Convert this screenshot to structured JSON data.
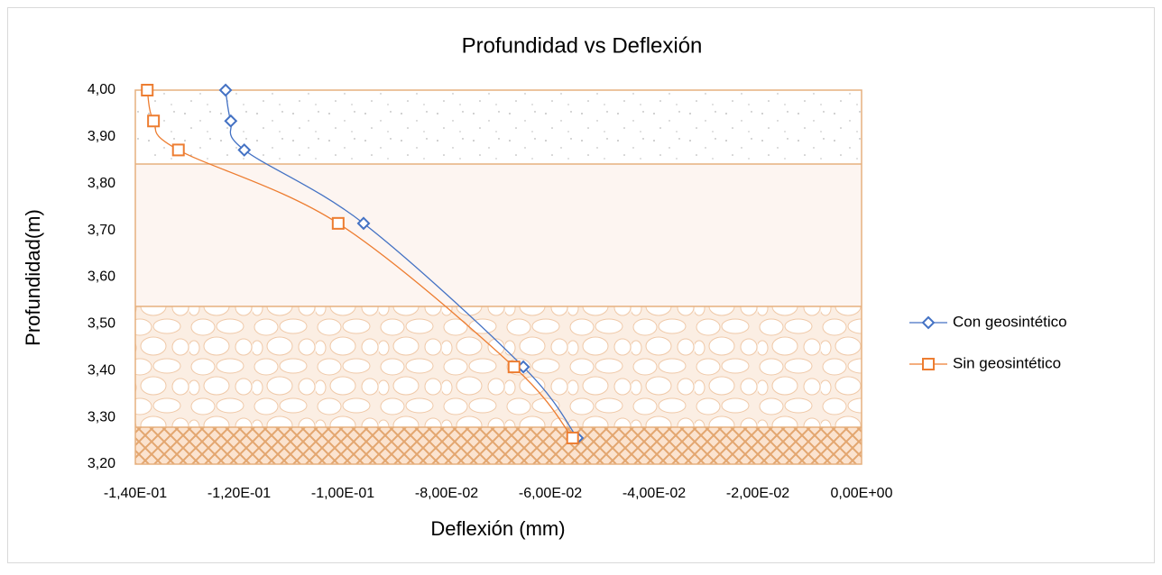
{
  "chart_data": {
    "type": "scatter",
    "title": "Profundidad vs Deflexión",
    "x_label": "Deflexión  (mm)",
    "y_label": "Profundidad(m)",
    "xlim": [
      -0.14,
      0
    ],
    "ylim": [
      3.2,
      4.0
    ],
    "xticks": [
      {
        "value": -0.14,
        "label": "-1,40E-01"
      },
      {
        "value": -0.12,
        "label": "-1,20E-01"
      },
      {
        "value": -0.1,
        "label": "-1,00E-01"
      },
      {
        "value": -0.08,
        "label": "-8,00E-02"
      },
      {
        "value": -0.06,
        "label": "-6,00E-02"
      },
      {
        "value": -0.04,
        "label": "-4,00E-02"
      },
      {
        "value": -0.02,
        "label": "-2,00E-02"
      },
      {
        "value": 0,
        "label": "0,00E+00"
      }
    ],
    "yticks": [
      {
        "value": 3.2,
        "label": "3,20"
      },
      {
        "value": 3.3,
        "label": "3,30"
      },
      {
        "value": 3.4,
        "label": "3,40"
      },
      {
        "value": 3.5,
        "label": "3,50"
      },
      {
        "value": 3.6,
        "label": "3,60"
      },
      {
        "value": 3.7,
        "label": "3,70"
      },
      {
        "value": 3.8,
        "label": "3,80"
      },
      {
        "value": 3.9,
        "label": "3,90"
      },
      {
        "value": 4.0,
        "label": "4,00"
      }
    ],
    "legend": "right",
    "series": [
      {
        "name": "Con geosintético",
        "color": "#4472c4",
        "marker": "diamond",
        "x": [
          -0.1226,
          -0.1216,
          -0.119,
          -0.096,
          -0.0652,
          -0.0548
        ],
        "values": [
          4.0,
          3.934,
          3.872,
          3.715,
          3.408,
          3.256
        ]
      },
      {
        "name": "Sin geosintético",
        "color": "#ed7d31",
        "marker": "square",
        "x": [
          -0.1377,
          -0.1365,
          -0.1317,
          -0.1009,
          -0.067,
          -0.0557
        ],
        "values": [
          4.0,
          3.934,
          3.872,
          3.715,
          3.408,
          3.256
        ]
      }
    ]
  }
}
